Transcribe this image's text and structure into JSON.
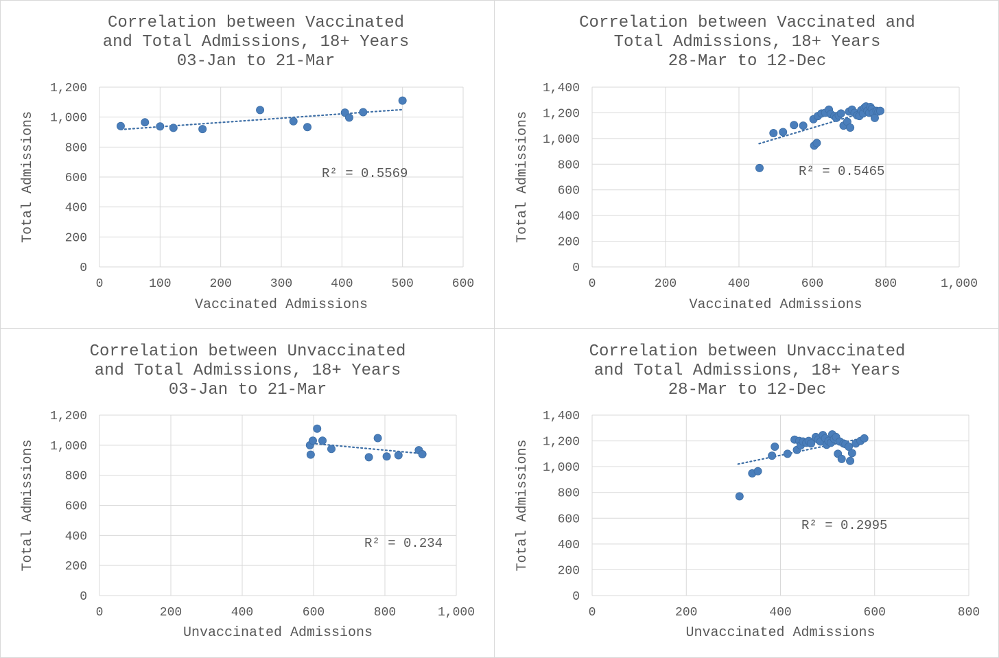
{
  "chart_data": [
    {
      "type": "scatter",
      "title": [
        "Correlation between Vaccinated",
        "and Total Admissions, 18+ Years",
        "03-Jan to 21-Mar"
      ],
      "xlabel": "Vaccinated Admissions",
      "ylabel": "Total Admissions",
      "xlim": [
        0,
        600
      ],
      "xticks": [
        0,
        100,
        200,
        300,
        400,
        500,
        600
      ],
      "xtick_labels": [
        "0",
        "100",
        "200",
        "300",
        "400",
        "500",
        "600"
      ],
      "ylim": [
        0,
        1200
      ],
      "yticks": [
        0,
        200,
        400,
        600,
        800,
        1000,
        1200
      ],
      "ytick_labels": [
        "0",
        "200",
        "400",
        "600",
        "800",
        "1,000",
        "1,200"
      ],
      "grid": true,
      "r2_label": "R² = 0.5569",
      "trendline": {
        "x": [
          35,
          500
        ],
        "y": [
          917,
          1050
        ]
      },
      "points": [
        [
          35,
          940
        ],
        [
          75,
          965
        ],
        [
          100,
          938
        ],
        [
          122,
          928
        ],
        [
          170,
          920
        ],
        [
          265,
          1047
        ],
        [
          320,
          972
        ],
        [
          343,
          933
        ],
        [
          405,
          1030
        ],
        [
          412,
          997
        ],
        [
          435,
          1033
        ],
        [
          500,
          1110
        ]
      ]
    },
    {
      "type": "scatter",
      "title": [
        "Correlation between Vaccinated and",
        "Total Admissions, 18+ Years",
        "28-Mar to 12-Dec"
      ],
      "xlabel": "Vaccinated Admissions",
      "ylabel": "Total Admissions",
      "xlim": [
        0,
        1000
      ],
      "xticks": [
        0,
        200,
        400,
        600,
        800,
        1000
      ],
      "xtick_labels": [
        "0",
        "200",
        "400",
        "600",
        "800",
        "1,000"
      ],
      "ylim": [
        0,
        1400
      ],
      "yticks": [
        0,
        200,
        400,
        600,
        800,
        1000,
        1200,
        1400
      ],
      "ytick_labels": [
        "0",
        "200",
        "400",
        "600",
        "800",
        "1,000",
        "1,200",
        "1,400"
      ],
      "grid": true,
      "r2_label": "R² = 0.5465",
      "trendline": {
        "x": [
          455,
          785
        ],
        "y": [
          960,
          1240
        ]
      },
      "points": [
        [
          456,
          770
        ],
        [
          494,
          1042
        ],
        [
          520,
          1050
        ],
        [
          550,
          1105
        ],
        [
          575,
          1100
        ],
        [
          603,
          1150
        ],
        [
          605,
          945
        ],
        [
          612,
          965
        ],
        [
          615,
          1175
        ],
        [
          625,
          1195
        ],
        [
          635,
          1200
        ],
        [
          645,
          1225
        ],
        [
          650,
          1190
        ],
        [
          660,
          1175
        ],
        [
          665,
          1160
        ],
        [
          672,
          1180
        ],
        [
          678,
          1195
        ],
        [
          685,
          1100
        ],
        [
          695,
          1130
        ],
        [
          700,
          1210
        ],
        [
          703,
          1085
        ],
        [
          708,
          1225
        ],
        [
          715,
          1200
        ],
        [
          722,
          1180
        ],
        [
          728,
          1175
        ],
        [
          733,
          1220
        ],
        [
          738,
          1195
        ],
        [
          742,
          1240
        ],
        [
          746,
          1250
        ],
        [
          750,
          1215
        ],
        [
          755,
          1200
        ],
        [
          758,
          1245
        ],
        [
          762,
          1230
        ],
        [
          765,
          1200
        ],
        [
          770,
          1160
        ],
        [
          775,
          1215
        ],
        [
          780,
          1210
        ],
        [
          785,
          1215
        ]
      ]
    },
    {
      "type": "scatter",
      "title": [
        "Correlation between Unvaccinated",
        "and Total Admissions, 18+ Years",
        "03-Jan to 21-Mar"
      ],
      "xlabel": "Unvaccinated Admissions",
      "ylabel": "Total Admissions",
      "xlim": [
        0,
        1000
      ],
      "xticks": [
        0,
        200,
        400,
        600,
        800,
        1000
      ],
      "xtick_labels": [
        "0",
        "200",
        "400",
        "600",
        "800",
        "1,000"
      ],
      "ylim": [
        0,
        1200
      ],
      "yticks": [
        0,
        200,
        400,
        600,
        800,
        1000,
        1200
      ],
      "ytick_labels": [
        "0",
        "200",
        "400",
        "600",
        "800",
        "1,000",
        "1,200"
      ],
      "grid": true,
      "r2_label": "R² = 0.234",
      "trendline": {
        "x": [
          595,
          900
        ],
        "y": [
          1012,
          945
        ]
      },
      "points": [
        [
          590,
          1000
        ],
        [
          592,
          937
        ],
        [
          598,
          1030
        ],
        [
          610,
          1110
        ],
        [
          625,
          1030
        ],
        [
          650,
          975
        ],
        [
          755,
          920
        ],
        [
          780,
          1047
        ],
        [
          805,
          925
        ],
        [
          838,
          933
        ],
        [
          895,
          967
        ],
        [
          905,
          940
        ]
      ]
    },
    {
      "type": "scatter",
      "title": [
        "Correlation between Unvaccinated",
        "and Total Admissions, 18+ Years",
        "28-Mar to 12-Dec"
      ],
      "xlabel": "Unvaccinated Admissions",
      "ylabel": "Total Admissions",
      "xlim": [
        0,
        800
      ],
      "xticks": [
        0,
        200,
        400,
        600,
        800
      ],
      "xtick_labels": [
        "0",
        "200",
        "400",
        "600",
        "800"
      ],
      "ylim": [
        0,
        1400
      ],
      "yticks": [
        0,
        200,
        400,
        600,
        800,
        1000,
        1200,
        1400
      ],
      "ytick_labels": [
        "0",
        "200",
        "400",
        "600",
        "800",
        "1,000",
        "1,200",
        "1,400"
      ],
      "grid": true,
      "r2_label": "R² = 0.2995",
      "trendline": {
        "x": [
          310,
          580
        ],
        "y": [
          1020,
          1225
        ]
      },
      "points": [
        [
          313,
          770
        ],
        [
          340,
          948
        ],
        [
          352,
          965
        ],
        [
          382,
          1085
        ],
        [
          388,
          1155
        ],
        [
          415,
          1100
        ],
        [
          430,
          1210
        ],
        [
          435,
          1130
        ],
        [
          440,
          1200
        ],
        [
          443,
          1165
        ],
        [
          448,
          1195
        ],
        [
          455,
          1185
        ],
        [
          460,
          1200
        ],
        [
          465,
          1180
        ],
        [
          475,
          1230
        ],
        [
          480,
          1210
        ],
        [
          485,
          1195
        ],
        [
          490,
          1245
        ],
        [
          495,
          1220
        ],
        [
          498,
          1170
        ],
        [
          502,
          1200
        ],
        [
          507,
          1185
        ],
        [
          510,
          1250
        ],
        [
          514,
          1215
        ],
        [
          518,
          1230
        ],
        [
          522,
          1100
        ],
        [
          526,
          1195
        ],
        [
          530,
          1060
        ],
        [
          534,
          1180
        ],
        [
          538,
          1175
        ],
        [
          545,
          1155
        ],
        [
          548,
          1045
        ],
        [
          552,
          1105
        ],
        [
          560,
          1180
        ],
        [
          570,
          1200
        ],
        [
          578,
          1220
        ]
      ]
    }
  ]
}
